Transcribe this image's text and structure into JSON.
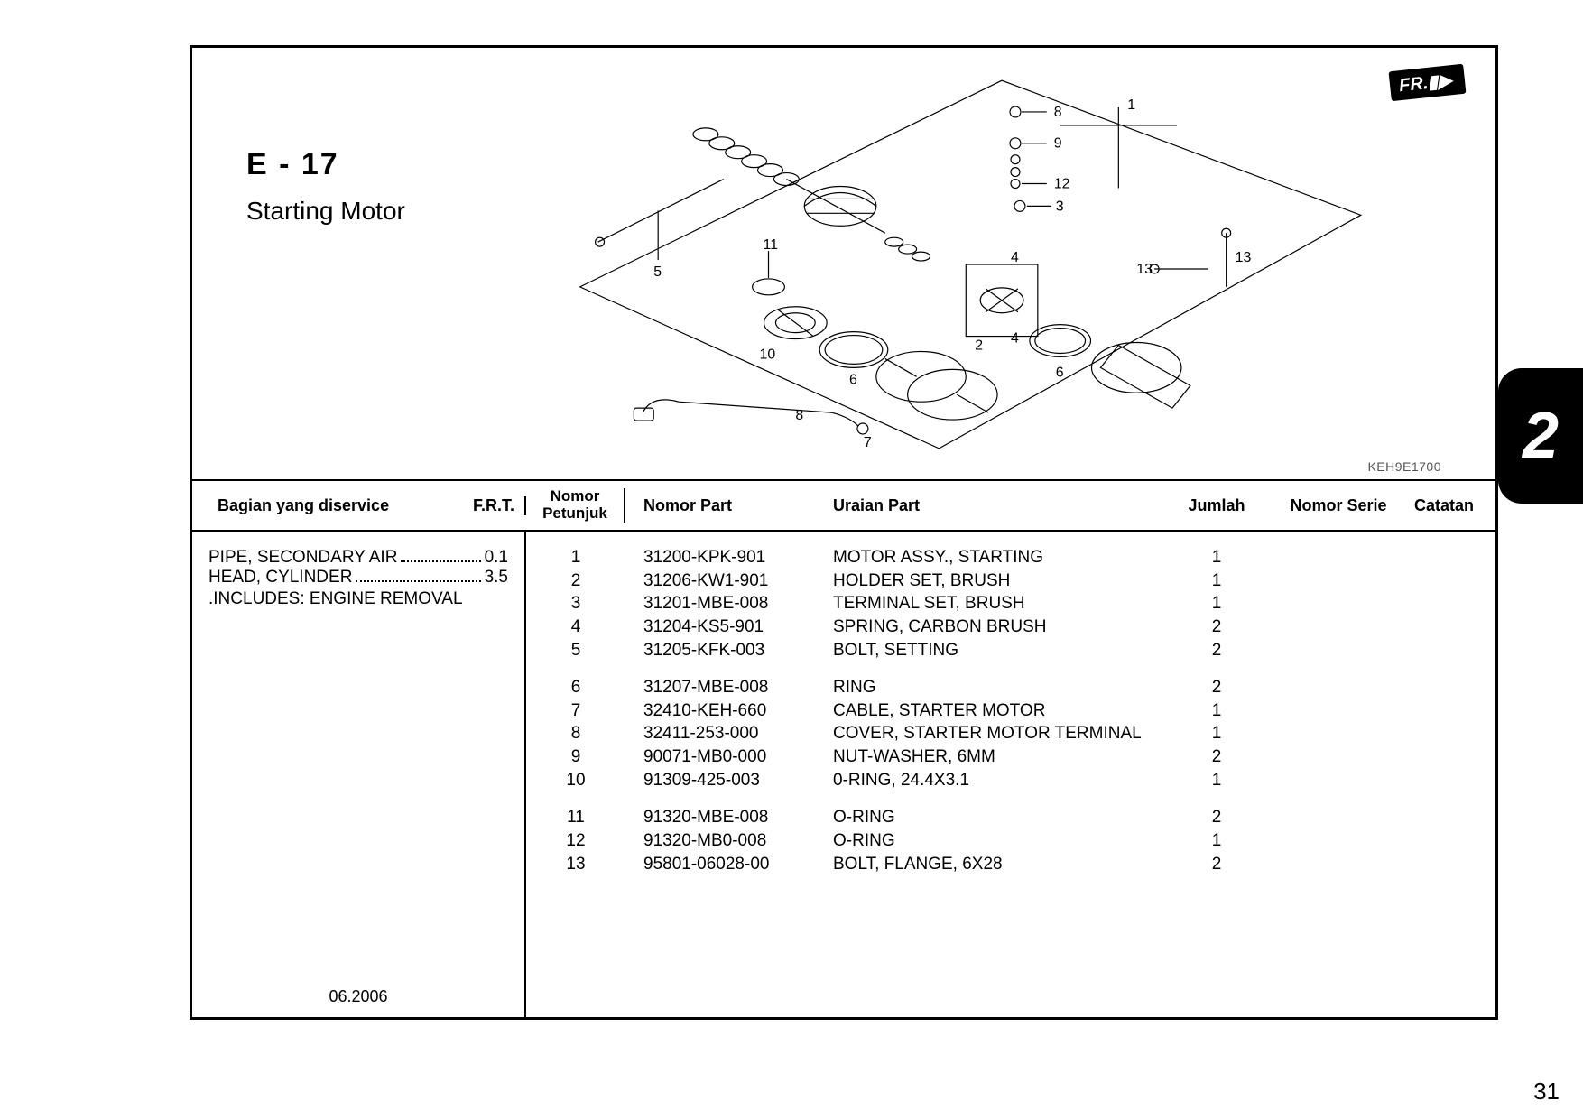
{
  "section": {
    "code": "E - 17",
    "name": "Starting Motor"
  },
  "fr_label": "FR.",
  "diagram_id": "KEH9E1700",
  "section_tab": "2",
  "page_number": "31",
  "date": "06.2006",
  "headers": {
    "service": "Bagian yang diservice",
    "frt": "F.R.T.",
    "ref": "Nomor Petunjuk",
    "partno": "Nomor Part",
    "desc": "Uraian Part",
    "qty": "Jumlah",
    "serial": "Nomor Serie",
    "note": "Catatan"
  },
  "service": {
    "rows": [
      {
        "name": "PIPE, SECONDARY AIR",
        "frt": "0.1"
      },
      {
        "name": "HEAD, CYLINDER",
        "frt": "3.5"
      }
    ],
    "note": ".INCLUDES: ENGINE REMOVAL"
  },
  "parts": [
    [
      {
        "ref": "1",
        "no": "31200-KPK-901",
        "desc": "MOTOR ASSY., STARTING",
        "qty": "1"
      },
      {
        "ref": "2",
        "no": "31206-KW1-901",
        "desc": "HOLDER SET, BRUSH",
        "qty": "1"
      },
      {
        "ref": "3",
        "no": "31201-MBE-008",
        "desc": "TERMINAL SET, BRUSH",
        "qty": "1"
      },
      {
        "ref": "4",
        "no": "31204-KS5-901",
        "desc": "SPRING, CARBON BRUSH",
        "qty": "2"
      },
      {
        "ref": "5",
        "no": "31205-KFK-003",
        "desc": "BOLT, SETTING",
        "qty": "2"
      }
    ],
    [
      {
        "ref": "6",
        "no": "31207-MBE-008",
        "desc": "RING",
        "qty": "2"
      },
      {
        "ref": "7",
        "no": "32410-KEH-660",
        "desc": "CABLE, STARTER MOTOR",
        "qty": "1"
      },
      {
        "ref": "8",
        "no": "32411-253-000",
        "desc": "COVER, STARTER MOTOR TERMINAL",
        "qty": "1"
      },
      {
        "ref": "9",
        "no": "90071-MB0-000",
        "desc": "NUT-WASHER, 6MM",
        "qty": "2"
      },
      {
        "ref": "10",
        "no": "91309-425-003",
        "desc": "0-RING, 24.4X3.1",
        "qty": "1"
      }
    ],
    [
      {
        "ref": "11",
        "no": "91320-MBE-008",
        "desc": "O-RING",
        "qty": "2"
      },
      {
        "ref": "12",
        "no": "91320-MB0-008",
        "desc": "O-RING",
        "qty": "1"
      },
      {
        "ref": "13",
        "no": "95801-06028-00",
        "desc": " BOLT, FLANGE, 6X28",
        "qty": "2"
      }
    ]
  ],
  "callouts": [
    "1",
    "2",
    "3",
    "4",
    "5",
    "6",
    "7",
    "8",
    "9",
    "10",
    "11",
    "12",
    "13"
  ]
}
